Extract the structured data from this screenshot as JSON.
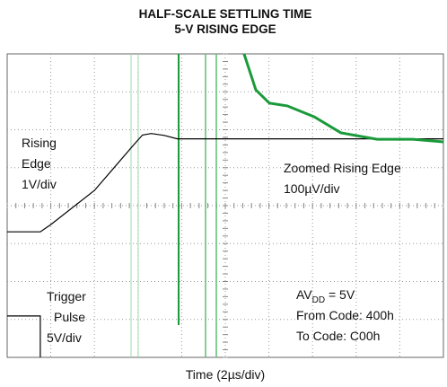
{
  "chart_data": {
    "type": "line",
    "title": [
      "HALF-SCALE SETTLING TIME",
      "5-V RISING EDGE"
    ],
    "xlabel": "Time (2µs/div)",
    "xlim": [
      0,
      10
    ],
    "ylim": [
      0,
      8
    ],
    "grid": true,
    "annotations": {
      "rising": [
        "Rising",
        "Edge",
        "1V/div"
      ],
      "zoomed": [
        "Zoomed Rising Edge",
        "100µV/div"
      ],
      "trigger": [
        "Trigger",
        "Pulse",
        "5V/div"
      ],
      "supply": {
        "main": "AV",
        "sub": "DD",
        "rest": " = 5V"
      },
      "codes": [
        "From Code: 400h",
        "To Code: C00h"
      ]
    },
    "series": [
      {
        "color": "#000000",
        "x": [
          0,
          0.76,
          1.0,
          2.0,
          2.9,
          3.1,
          3.3,
          3.6,
          3.9,
          4.3,
          10
        ],
        "values": [
          3.31,
          3.31,
          3.5,
          4.4,
          5.6,
          5.86,
          5.9,
          5.85,
          5.76,
          5.76,
          5.76
        ]
      },
      {
        "color": "#1a9a3a",
        "x": [
          5.43,
          5.6,
          5.7,
          6.01,
          6.42,
          7.04,
          7.65,
          8.48,
          9.3,
          10
        ],
        "values": [
          8.0,
          7.4,
          7.05,
          6.7,
          6.63,
          6.34,
          5.92,
          5.75,
          5.75,
          5.68
        ]
      },
      {
        "color": "#000000",
        "x": [
          0,
          0.76,
          0.76
        ],
        "values": [
          1.09,
          1.09,
          0
        ]
      }
    ]
  }
}
